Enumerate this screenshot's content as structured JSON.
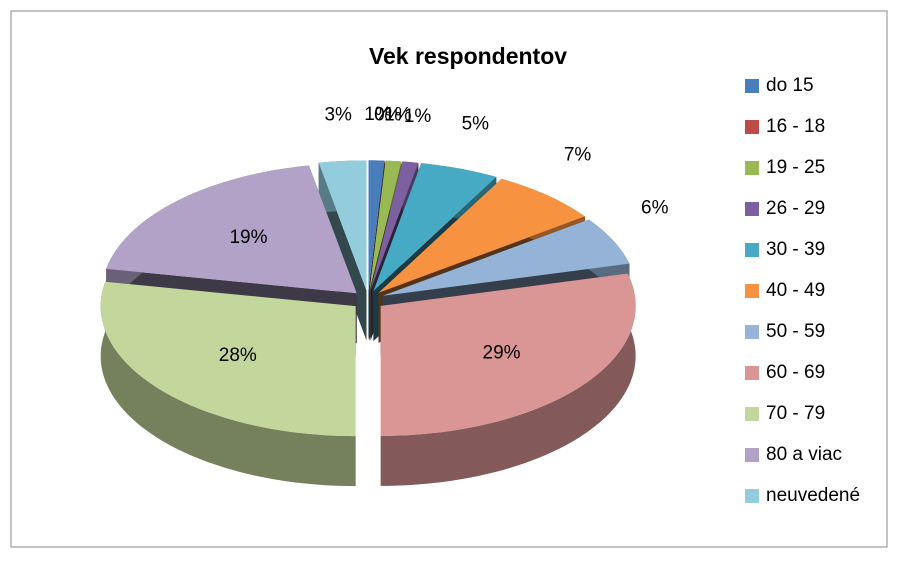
{
  "chart_data": {
    "type": "pie3d",
    "title": "Vek respondentov",
    "categories": [
      "do 15",
      "16 - 18",
      "19 - 25",
      "26 - 29",
      "30 - 39",
      "40 - 49",
      "50 - 59",
      "60 - 69",
      "70 - 79",
      "80 a viac",
      "neuvedené"
    ],
    "values": [
      1,
      0,
      1,
      1,
      5,
      7,
      6,
      29,
      28,
      19,
      3
    ],
    "value_labels": [
      "1%",
      "0%",
      "1%",
      "1%",
      "5%",
      "7%",
      "6%",
      "29%",
      "28%",
      "19%",
      "3%"
    ],
    "colors": [
      "#4a7ebb",
      "#be4b48",
      "#98b954",
      "#7d60a0",
      "#46aac5",
      "#f69240",
      "#95b3d7",
      "#da9694",
      "#c3d69b",
      "#b2a2c7",
      "#93cddd"
    ],
    "legend": "right"
  }
}
